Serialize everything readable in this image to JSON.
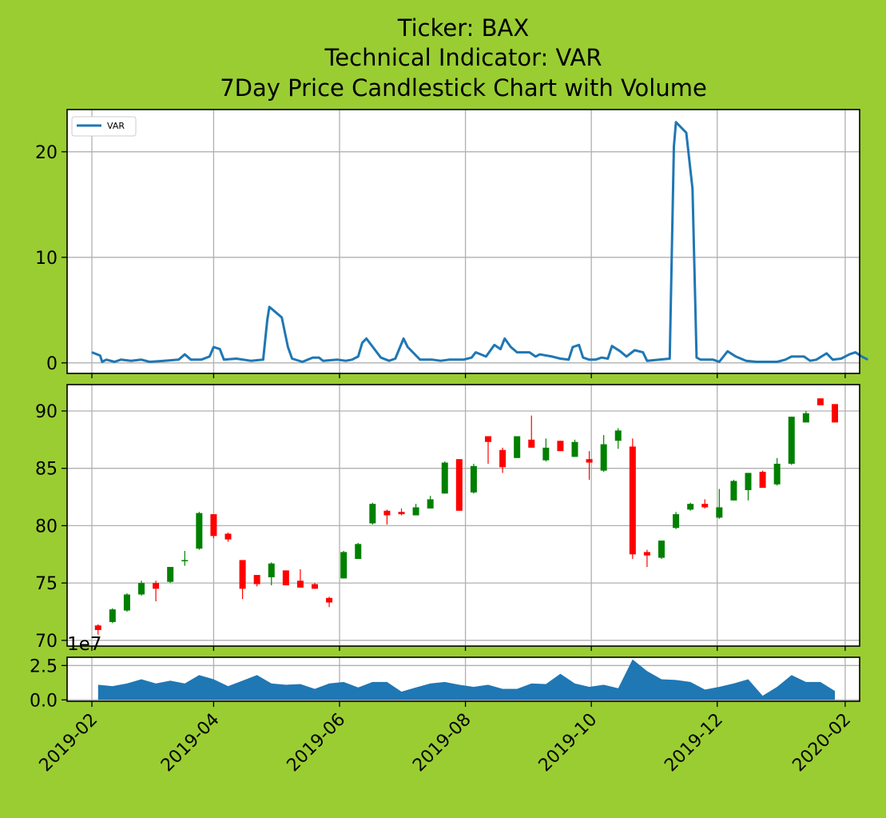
{
  "chart_data": {
    "type": "candlestick",
    "title_lines": [
      "Ticker: BAX",
      "Technical Indicator: VAR",
      "7Day Price Candlestick Chart with Volume"
    ],
    "colors": {
      "background": "#9acd32",
      "line": "#1f77b4",
      "up": "#008000",
      "down": "#ff0000",
      "volume": "#1f77b4",
      "grid": "#b0b0b0"
    },
    "x_axis": {
      "ticks": [
        "2019-02-01",
        "2019-04-01",
        "2019-06-01",
        "2019-08-01",
        "2019-10-01",
        "2019-12-01",
        "2020-02-01"
      ],
      "tick_labels": [
        "2019-02",
        "2019-04",
        "2019-06",
        "2019-08",
        "2019-10",
        "2019-12",
        "2020-02"
      ],
      "range": [
        "2019-01-20",
        "2020-02-08"
      ]
    },
    "indicator": {
      "legend": "VAR",
      "legend_position": "upper-left",
      "ylim": [
        -1,
        24
      ],
      "yticks": [
        0,
        10,
        20
      ],
      "points": [
        [
          "2019-02-01",
          1.0
        ],
        [
          "2019-02-05",
          0.7
        ],
        [
          "2019-02-06",
          0.1
        ],
        [
          "2019-02-08",
          0.3
        ],
        [
          "2019-02-12",
          0.1
        ],
        [
          "2019-02-15",
          0.3
        ],
        [
          "2019-02-20",
          0.2
        ],
        [
          "2019-02-25",
          0.3
        ],
        [
          "2019-03-01",
          0.1
        ],
        [
          "2019-03-08",
          0.2
        ],
        [
          "2019-03-15",
          0.3
        ],
        [
          "2019-03-18",
          0.8
        ],
        [
          "2019-03-21",
          0.3
        ],
        [
          "2019-03-26",
          0.3
        ],
        [
          "2019-03-30",
          0.6
        ],
        [
          "2019-04-01",
          1.5
        ],
        [
          "2019-04-04",
          1.3
        ],
        [
          "2019-04-06",
          0.3
        ],
        [
          "2019-04-12",
          0.4
        ],
        [
          "2019-04-19",
          0.2
        ],
        [
          "2019-04-25",
          0.3
        ],
        [
          "2019-04-27",
          4.1
        ],
        [
          "2019-04-28",
          5.3
        ],
        [
          "2019-05-04",
          4.3
        ],
        [
          "2019-05-07",
          1.5
        ],
        [
          "2019-05-09",
          0.4
        ],
        [
          "2019-05-14",
          0.1
        ],
        [
          "2019-05-19",
          0.5
        ],
        [
          "2019-05-22",
          0.5
        ],
        [
          "2019-05-24",
          0.2
        ],
        [
          "2019-05-31",
          0.3
        ],
        [
          "2019-06-04",
          0.2
        ],
        [
          "2019-06-07",
          0.3
        ],
        [
          "2019-06-10",
          0.6
        ],
        [
          "2019-06-12",
          1.9
        ],
        [
          "2019-06-14",
          2.3
        ],
        [
          "2019-06-21",
          0.5
        ],
        [
          "2019-06-25",
          0.2
        ],
        [
          "2019-06-28",
          0.4
        ],
        [
          "2019-07-02",
          2.3
        ],
        [
          "2019-07-04",
          1.5
        ],
        [
          "2019-07-10",
          0.3
        ],
        [
          "2019-07-16",
          0.3
        ],
        [
          "2019-07-20",
          0.2
        ],
        [
          "2019-07-24",
          0.3
        ],
        [
          "2019-07-31",
          0.3
        ],
        [
          "2019-08-04",
          0.5
        ],
        [
          "2019-08-06",
          1.0
        ],
        [
          "2019-08-11",
          0.6
        ],
        [
          "2019-08-15",
          1.7
        ],
        [
          "2019-08-18",
          1.3
        ],
        [
          "2019-08-20",
          2.3
        ],
        [
          "2019-08-23",
          1.5
        ],
        [
          "2019-08-26",
          1.0
        ],
        [
          "2019-09-01",
          1.0
        ],
        [
          "2019-09-04",
          0.6
        ],
        [
          "2019-09-06",
          0.8
        ],
        [
          "2019-09-12",
          0.6
        ],
        [
          "2019-09-16",
          0.4
        ],
        [
          "2019-09-20",
          0.3
        ],
        [
          "2019-09-22",
          1.5
        ],
        [
          "2019-09-25",
          1.7
        ],
        [
          "2019-09-27",
          0.5
        ],
        [
          "2019-09-30",
          0.3
        ],
        [
          "2019-10-03",
          0.3
        ],
        [
          "2019-10-06",
          0.5
        ],
        [
          "2019-10-09",
          0.4
        ],
        [
          "2019-10-11",
          1.6
        ],
        [
          "2019-10-15",
          1.1
        ],
        [
          "2019-10-18",
          0.6
        ],
        [
          "2019-10-22",
          1.2
        ],
        [
          "2019-10-26",
          1.0
        ],
        [
          "2019-10-28",
          0.2
        ],
        [
          "2019-11-08",
          0.4
        ],
        [
          "2019-11-10",
          20.5
        ],
        [
          "2019-11-11",
          22.8
        ],
        [
          "2019-11-16",
          21.8
        ],
        [
          "2019-11-19",
          16.5
        ],
        [
          "2019-11-21",
          0.5
        ],
        [
          "2019-11-23",
          0.3
        ],
        [
          "2019-11-29",
          0.3
        ],
        [
          "2019-12-02",
          0.1
        ],
        [
          "2019-12-06",
          1.1
        ],
        [
          "2019-12-10",
          0.6
        ],
        [
          "2019-12-15",
          0.2
        ],
        [
          "2019-12-20",
          0.1
        ],
        [
          "2019-12-25",
          0.1
        ],
        [
          "2019-12-30",
          0.1
        ],
        [
          "2020-01-03",
          0.3
        ],
        [
          "2020-01-06",
          0.6
        ],
        [
          "2020-01-12",
          0.6
        ],
        [
          "2020-01-15",
          0.2
        ],
        [
          "2020-01-18",
          0.3
        ],
        [
          "2020-01-23",
          0.9
        ],
        [
          "2020-01-26",
          0.3
        ],
        [
          "2020-01-30",
          0.4
        ],
        [
          "2020-02-03",
          0.8
        ],
        [
          "2020-02-06",
          1.0
        ],
        [
          "2020-02-09",
          0.6
        ],
        [
          "2020-02-12",
          0.3
        ]
      ]
    },
    "price": {
      "ylim": [
        69.5,
        92.3
      ],
      "yticks": [
        70,
        75,
        80,
        85,
        90
      ],
      "candles": [
        [
          "2019-02-04",
          71.3,
          71.4,
          70.5,
          70.9
        ],
        [
          "2019-02-11",
          71.6,
          72.8,
          71.5,
          72.7
        ],
        [
          "2019-02-18",
          72.6,
          74.1,
          72.5,
          74.0
        ],
        [
          "2019-02-25",
          74.0,
          75.2,
          73.9,
          75.0
        ],
        [
          "2019-03-04",
          75.0,
          75.2,
          73.4,
          74.5
        ],
        [
          "2019-03-11",
          75.1,
          76.4,
          75.0,
          76.4
        ],
        [
          "2019-03-18",
          76.9,
          77.8,
          76.5,
          77.0
        ],
        [
          "2019-03-25",
          78.0,
          81.2,
          77.9,
          81.1
        ],
        [
          "2019-04-01",
          81.0,
          81.0,
          78.9,
          79.1
        ],
        [
          "2019-04-08",
          79.3,
          79.4,
          78.6,
          78.8
        ],
        [
          "2019-04-15",
          77.0,
          77.0,
          73.6,
          74.5
        ],
        [
          "2019-04-22",
          75.7,
          75.7,
          74.7,
          74.9
        ],
        [
          "2019-04-29",
          75.5,
          76.8,
          74.8,
          76.7
        ],
        [
          "2019-05-06",
          76.1,
          76.1,
          74.8,
          74.8
        ],
        [
          "2019-05-13",
          75.2,
          76.2,
          74.6,
          74.6
        ],
        [
          "2019-05-20",
          74.9,
          75.0,
          74.5,
          74.5
        ],
        [
          "2019-05-27",
          73.7,
          73.8,
          72.9,
          73.3
        ],
        [
          "2019-06-03",
          75.4,
          77.8,
          75.4,
          77.7
        ],
        [
          "2019-06-10",
          77.1,
          78.5,
          77.1,
          78.4
        ],
        [
          "2019-06-17",
          80.2,
          82.0,
          80.1,
          81.9
        ],
        [
          "2019-06-24",
          81.3,
          81.4,
          80.1,
          80.9
        ],
        [
          "2019-07-01",
          81.2,
          81.5,
          80.9,
          81.0
        ],
        [
          "2019-07-08",
          80.9,
          81.9,
          80.9,
          81.6
        ],
        [
          "2019-07-15",
          81.5,
          82.6,
          81.5,
          82.3
        ],
        [
          "2019-07-22",
          82.8,
          85.6,
          82.8,
          85.5
        ],
        [
          "2019-07-29",
          85.8,
          85.8,
          81.3,
          81.3
        ],
        [
          "2019-08-05",
          82.9,
          85.4,
          82.8,
          85.2
        ],
        [
          "2019-08-12",
          87.8,
          87.8,
          85.4,
          87.3
        ],
        [
          "2019-08-19",
          86.6,
          86.8,
          84.6,
          85.1
        ],
        [
          "2019-08-26",
          85.9,
          87.8,
          85.9,
          87.8
        ],
        [
          "2019-09-02",
          87.5,
          89.6,
          86.8,
          86.8
        ],
        [
          "2019-09-09",
          85.7,
          87.6,
          85.6,
          86.8
        ],
        [
          "2019-09-16",
          87.4,
          87.4,
          86.6,
          86.5
        ],
        [
          "2019-09-23",
          86.0,
          87.5,
          86.0,
          87.3
        ],
        [
          "2019-09-30",
          85.8,
          86.5,
          84.0,
          85.5
        ],
        [
          "2019-10-07",
          84.8,
          87.9,
          84.7,
          87.1
        ],
        [
          "2019-10-14",
          87.4,
          88.5,
          86.7,
          88.3
        ],
        [
          "2019-10-21",
          86.9,
          87.6,
          77.1,
          77.5
        ],
        [
          "2019-10-28",
          77.7,
          77.9,
          76.4,
          77.4
        ],
        [
          "2019-11-04",
          77.2,
          78.7,
          77.1,
          78.7
        ],
        [
          "2019-11-11",
          79.8,
          81.2,
          79.7,
          81.0
        ],
        [
          "2019-11-18",
          81.4,
          82.0,
          81.3,
          81.9
        ],
        [
          "2019-11-25",
          81.9,
          82.3,
          81.5,
          81.6
        ],
        [
          "2019-12-02",
          80.7,
          83.2,
          80.6,
          81.6
        ],
        [
          "2019-12-09",
          82.2,
          84.0,
          82.2,
          83.9
        ],
        [
          "2019-12-16",
          83.1,
          84.6,
          82.2,
          84.6
        ],
        [
          "2019-12-23",
          84.7,
          84.8,
          83.3,
          83.3
        ],
        [
          "2019-12-30",
          83.6,
          85.9,
          83.5,
          85.4
        ],
        [
          "2020-01-06",
          85.4,
          89.5,
          85.3,
          89.5
        ],
        [
          "2020-01-13",
          89.0,
          90.0,
          89.0,
          89.8
        ],
        [
          "2020-01-20",
          91.1,
          91.1,
          90.5,
          90.5
        ],
        [
          "2020-01-27",
          90.6,
          90.6,
          89.0,
          89.0
        ]
      ]
    },
    "volume": {
      "offset_label": "1e7",
      "ylim": [
        -0.1,
        3.1
      ],
      "yticks": [
        "0.0",
        "2.5"
      ],
      "ytick_values": [
        0,
        2.5
      ],
      "points": [
        [
          "2019-02-04",
          1.1
        ],
        [
          "2019-02-11",
          1.0
        ],
        [
          "2019-02-18",
          1.2
        ],
        [
          "2019-02-25",
          1.5
        ],
        [
          "2019-03-04",
          1.2
        ],
        [
          "2019-03-11",
          1.4
        ],
        [
          "2019-03-18",
          1.2
        ],
        [
          "2019-03-25",
          1.8
        ],
        [
          "2019-04-01",
          1.5
        ],
        [
          "2019-04-08",
          1.0
        ],
        [
          "2019-04-15",
          1.4
        ],
        [
          "2019-04-22",
          1.8
        ],
        [
          "2019-04-29",
          1.2
        ],
        [
          "2019-05-06",
          1.1
        ],
        [
          "2019-05-13",
          1.15
        ],
        [
          "2019-05-20",
          0.8
        ],
        [
          "2019-05-27",
          1.2
        ],
        [
          "2019-06-03",
          1.3
        ],
        [
          "2019-06-10",
          0.9
        ],
        [
          "2019-06-17",
          1.3
        ],
        [
          "2019-06-24",
          1.3
        ],
        [
          "2019-07-01",
          0.6
        ],
        [
          "2019-07-08",
          0.9
        ],
        [
          "2019-07-15",
          1.2
        ],
        [
          "2019-07-22",
          1.3
        ],
        [
          "2019-07-29",
          1.1
        ],
        [
          "2019-08-05",
          0.95
        ],
        [
          "2019-08-12",
          1.1
        ],
        [
          "2019-08-19",
          0.8
        ],
        [
          "2019-08-26",
          0.8
        ],
        [
          "2019-09-02",
          1.2
        ],
        [
          "2019-09-09",
          1.15
        ],
        [
          "2019-09-16",
          1.9
        ],
        [
          "2019-09-23",
          1.2
        ],
        [
          "2019-09-30",
          0.95
        ],
        [
          "2019-10-07",
          1.1
        ],
        [
          "2019-10-14",
          0.85
        ],
        [
          "2019-10-21",
          2.95
        ],
        [
          "2019-10-28",
          2.1
        ],
        [
          "2019-11-04",
          1.5
        ],
        [
          "2019-11-11",
          1.45
        ],
        [
          "2019-11-18",
          1.3
        ],
        [
          "2019-11-25",
          0.75
        ],
        [
          "2019-12-02",
          0.95
        ],
        [
          "2019-12-09",
          1.2
        ],
        [
          "2019-12-16",
          1.5
        ],
        [
          "2019-12-23",
          0.3
        ],
        [
          "2019-12-30",
          0.95
        ],
        [
          "2020-01-06",
          1.8
        ],
        [
          "2020-01-13",
          1.3
        ],
        [
          "2020-01-20",
          1.3
        ],
        [
          "2020-01-27",
          0.65
        ]
      ]
    }
  }
}
